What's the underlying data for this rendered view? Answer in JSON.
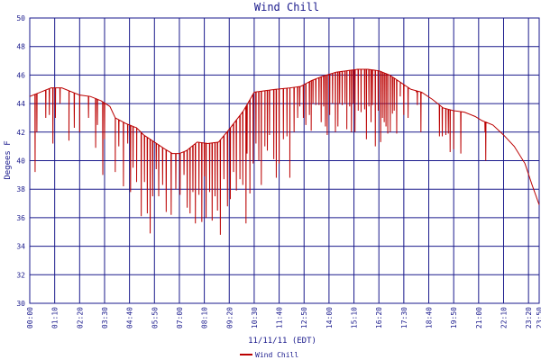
{
  "chart_data": {
    "type": "line",
    "title": "Wind Chill",
    "xlabel": "11/11/11 (EDT)",
    "ylabel": "Degees F",
    "ylim": [
      30,
      50
    ],
    "yticks": [
      "30",
      "32",
      "34",
      "36",
      "38",
      "40",
      "42",
      "44",
      "46",
      "48",
      "50"
    ],
    "xticks": [
      "00:00",
      "01:10",
      "02:20",
      "03:30",
      "04:40",
      "05:50",
      "07:00",
      "08:10",
      "09:20",
      "10:30",
      "11:40",
      "12:50",
      "14:00",
      "15:10",
      "16:20",
      "17:30",
      "18:40",
      "19:50",
      "21:00",
      "22:10",
      "23:20",
      "23:50"
    ],
    "x_range_minutes": [
      0,
      1430
    ],
    "grid": true,
    "legend": "bottom-center",
    "colors": {
      "series": "#bb0000",
      "grid": "#1a1a8c",
      "text": "#1a1a8c"
    },
    "series": [
      {
        "name": "Wind Chill",
        "baseline": [
          [
            0,
            44.5
          ],
          [
            30,
            44.8
          ],
          [
            60,
            45.1
          ],
          [
            90,
            45.1
          ],
          [
            110,
            44.9
          ],
          [
            140,
            44.6
          ],
          [
            170,
            44.5
          ],
          [
            200,
            44.2
          ],
          [
            225,
            43.8
          ],
          [
            240,
            43.0
          ],
          [
            270,
            42.6
          ],
          [
            300,
            42.3
          ],
          [
            320,
            41.8
          ],
          [
            350,
            41.3
          ],
          [
            380,
            40.8
          ],
          [
            400,
            40.5
          ],
          [
            420,
            40.5
          ],
          [
            440,
            40.7
          ],
          [
            470,
            41.3
          ],
          [
            500,
            41.2
          ],
          [
            530,
            41.3
          ],
          [
            560,
            42.2
          ],
          [
            600,
            43.5
          ],
          [
            630,
            44.8
          ],
          [
            660,
            44.9
          ],
          [
            690,
            45.0
          ],
          [
            730,
            45.1
          ],
          [
            760,
            45.2
          ],
          [
            790,
            45.6
          ],
          [
            820,
            45.9
          ],
          [
            860,
            46.2
          ],
          [
            890,
            46.3
          ],
          [
            920,
            46.4
          ],
          [
            950,
            46.4
          ],
          [
            980,
            46.3
          ],
          [
            1010,
            46.0
          ],
          [
            1040,
            45.5
          ],
          [
            1070,
            45.0
          ],
          [
            1100,
            44.8
          ],
          [
            1130,
            44.3
          ],
          [
            1160,
            43.7
          ],
          [
            1190,
            43.5
          ],
          [
            1220,
            43.4
          ],
          [
            1250,
            43.1
          ],
          [
            1270,
            42.8
          ],
          [
            1300,
            42.5
          ],
          [
            1330,
            41.8
          ],
          [
            1360,
            41.0
          ],
          [
            1390,
            39.8
          ],
          [
            1410,
            38.3
          ],
          [
            1430,
            36.9
          ]
        ],
        "dips": [
          [
            15,
            39.2
          ],
          [
            20,
            42.0
          ],
          [
            45,
            43.0
          ],
          [
            55,
            43.2
          ],
          [
            65,
            41.2
          ],
          [
            72,
            43.0
          ],
          [
            85,
            44.0
          ],
          [
            110,
            41.4
          ],
          [
            125,
            42.3
          ],
          [
            140,
            42.0
          ],
          [
            165,
            43.0
          ],
          [
            185,
            40.9
          ],
          [
            190,
            42.5
          ],
          [
            205,
            39.0
          ],
          [
            210,
            41.5
          ],
          [
            240,
            39.2
          ],
          [
            250,
            41.0
          ],
          [
            263,
            38.2
          ],
          [
            275,
            41.2
          ],
          [
            283,
            37.8
          ],
          [
            290,
            39.5
          ],
          [
            300,
            38.5
          ],
          [
            313,
            36.1
          ],
          [
            322,
            38.5
          ],
          [
            330,
            36.3
          ],
          [
            338,
            34.9
          ],
          [
            345,
            37.5
          ],
          [
            355,
            39.4
          ],
          [
            362,
            37.5
          ],
          [
            373,
            38.3
          ],
          [
            383,
            36.4
          ],
          [
            397,
            36.2
          ],
          [
            410,
            38.0
          ],
          [
            422,
            37.6
          ],
          [
            433,
            39.0
          ],
          [
            442,
            36.7
          ],
          [
            450,
            36.3
          ],
          [
            458,
            37.8
          ],
          [
            465,
            35.6
          ],
          [
            475,
            37.6
          ],
          [
            483,
            35.7
          ],
          [
            490,
            38.9
          ],
          [
            495,
            36.0
          ],
          [
            505,
            37.8
          ],
          [
            512,
            35.8
          ],
          [
            520,
            37.5
          ],
          [
            527,
            36.5
          ],
          [
            535,
            34.8
          ],
          [
            545,
            38.7
          ],
          [
            555,
            36.8
          ],
          [
            563,
            37.3
          ],
          [
            572,
            39.2
          ],
          [
            580,
            37.9
          ],
          [
            590,
            38.7
          ],
          [
            598,
            38.3
          ],
          [
            607,
            35.6
          ],
          [
            610,
            40.5
          ],
          [
            618,
            37.7
          ],
          [
            627,
            39.8
          ],
          [
            635,
            41.2
          ],
          [
            643,
            40.0
          ],
          [
            650,
            38.3
          ],
          [
            660,
            41.0
          ],
          [
            667,
            40.7
          ],
          [
            673,
            41.8
          ],
          [
            685,
            40.1
          ],
          [
            692,
            38.8
          ],
          [
            700,
            39.8
          ],
          [
            712,
            41.5
          ],
          [
            722,
            41.7
          ],
          [
            730,
            38.8
          ],
          [
            742,
            42.0
          ],
          [
            752,
            43.0
          ],
          [
            758,
            43.8
          ],
          [
            768,
            43.0
          ],
          [
            775,
            42.5
          ],
          [
            785,
            43.2
          ],
          [
            790,
            42.1
          ],
          [
            795,
            44.0
          ],
          [
            803,
            43.9
          ],
          [
            812,
            43.9
          ],
          [
            818,
            42.7
          ],
          [
            825,
            43.8
          ],
          [
            830,
            42.4
          ],
          [
            835,
            41.8
          ],
          [
            842,
            43.2
          ],
          [
            850,
            44.0
          ],
          [
            858,
            42.0
          ],
          [
            865,
            42.4
          ],
          [
            870,
            44.0
          ],
          [
            877,
            43.9
          ],
          [
            885,
            44.0
          ],
          [
            890,
            42.2
          ],
          [
            898,
            43.8
          ],
          [
            903,
            42.0
          ],
          [
            908,
            44.0
          ],
          [
            913,
            42.0
          ],
          [
            922,
            43.5
          ],
          [
            930,
            43.4
          ],
          [
            940,
            43.6
          ],
          [
            945,
            41.5
          ],
          [
            952,
            43.8
          ],
          [
            958,
            42.7
          ],
          [
            962,
            43.9
          ],
          [
            970,
            41.0
          ],
          [
            978,
            43.5
          ],
          [
            985,
            41.3
          ],
          [
            990,
            43.0
          ],
          [
            995,
            42.7
          ],
          [
            1000,
            42.4
          ],
          [
            1005,
            41.9
          ],
          [
            1012,
            42.0
          ],
          [
            1018,
            43.3
          ],
          [
            1023,
            43.5
          ],
          [
            1030,
            41.9
          ],
          [
            1040,
            44.5
          ],
          [
            1050,
            43.2
          ],
          [
            1062,
            43.0
          ],
          [
            1085,
            44.8
          ],
          [
            1088,
            43.9
          ],
          [
            1098,
            42.0
          ],
          [
            1150,
            41.7
          ],
          [
            1158,
            41.7
          ],
          [
            1168,
            41.8
          ],
          [
            1175,
            41.9
          ],
          [
            1180,
            40.6
          ],
          [
            1190,
            40.8
          ],
          [
            1210,
            40.5
          ],
          [
            1280,
            40.0
          ],
          [
            1278,
            42.0
          ]
        ]
      }
    ]
  }
}
